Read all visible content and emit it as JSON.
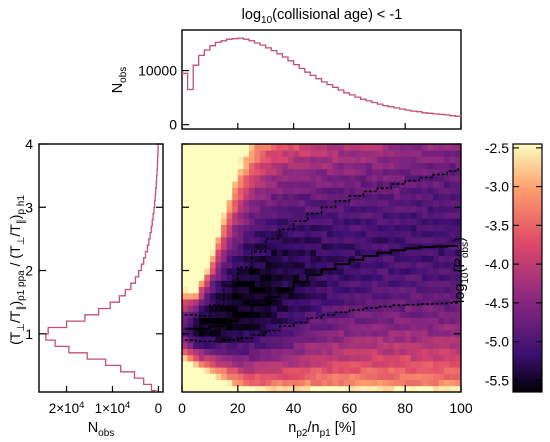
{
  "title": {
    "text": "log",
    "sub": "10",
    "rest": "(collisional age) < -1"
  },
  "colors": {
    "hist": "#c2507a",
    "frame": "#000000",
    "cmap": [
      "#000004",
      "#3b0f70",
      "#8c2981",
      "#de4968",
      "#fe9f6d",
      "#fcfdbf"
    ]
  },
  "chart_data": [
    {
      "type": "line",
      "id": "top-histogram",
      "ylabel": {
        "main": "N",
        "sub": "obs"
      },
      "xlim": [
        0,
        100
      ],
      "ylim": [
        -800,
        17500
      ],
      "yticks": [
        0,
        10000
      ],
      "ytick_labels": [
        "0",
        "10000"
      ],
      "x": [
        0,
        2,
        4,
        6,
        8,
        10,
        12,
        14,
        16,
        18,
        20,
        22,
        24,
        26,
        28,
        30,
        32,
        34,
        36,
        38,
        40,
        42,
        44,
        46,
        48,
        50,
        52,
        54,
        56,
        58,
        60,
        62,
        64,
        66,
        68,
        70,
        72,
        74,
        76,
        78,
        80,
        82,
        84,
        86,
        88,
        90,
        92,
        94,
        96,
        98,
        100
      ],
      "values": [
        9500,
        6500,
        11000,
        12800,
        13800,
        14600,
        15200,
        15500,
        15800,
        15900,
        16000,
        15800,
        15500,
        15100,
        14700,
        14200,
        13700,
        13100,
        12500,
        11800,
        11100,
        10400,
        9700,
        9100,
        8500,
        7900,
        7400,
        6900,
        6400,
        5900,
        5500,
        5100,
        4700,
        4400,
        4100,
        3800,
        3500,
        3300,
        3100,
        2900,
        2700,
        2500,
        2400,
        2200,
        2100,
        2000,
        1900,
        1800,
        1650,
        1550,
        1450
      ]
    },
    {
      "type": "line",
      "id": "left-histogram",
      "xlabel": {
        "main": "N",
        "sub": "obs"
      },
      "xticks": [
        20000,
        10000,
        0
      ],
      "xtick_labels": [
        {
          "m": "2×10",
          "e": "4"
        },
        {
          "m": "1×10",
          "e": "4"
        },
        {
          "m": "0",
          "e": ""
        }
      ],
      "xlim": [
        26000,
        -1000
      ],
      "ylim": [
        0.08,
        4.0
      ],
      "y": [
        0.1,
        0.2,
        0.3,
        0.4,
        0.5,
        0.6,
        0.7,
        0.8,
        0.9,
        1.0,
        1.1,
        1.2,
        1.3,
        1.4,
        1.5,
        1.6,
        1.7,
        1.8,
        1.9,
        2.0,
        2.1,
        2.2,
        2.3,
        2.4,
        2.5,
        2.6,
        2.7,
        2.8,
        2.9,
        3.0,
        3.1,
        3.2,
        3.3,
        3.4,
        3.5,
        3.6,
        3.7,
        3.8,
        3.9,
        4.0
      ],
      "values": [
        500,
        1500,
        3200,
        5200,
        8200,
        11500,
        15500,
        19500,
        22500,
        24500,
        24000,
        20000,
        16000,
        13000,
        10500,
        8500,
        7200,
        6000,
        5000,
        4300,
        3700,
        3200,
        2800,
        2400,
        2100,
        1800,
        1550,
        1350,
        1150,
        950,
        820,
        700,
        580,
        480,
        390,
        300,
        230,
        170,
        110,
        60
      ]
    },
    {
      "type": "heatmap",
      "id": "main-heatmap",
      "xlabel": {
        "a": "n",
        "as": "p2",
        "b": "/n",
        "bs": "p1",
        "c": " [%]"
      },
      "ylabel": "(T⊥/T∥)p1 ppa / (T⊥/T∥)p h1",
      "xlim": [
        0,
        100
      ],
      "ylim": [
        0.08,
        4.0
      ],
      "xticks": [
        0,
        20,
        40,
        60,
        80,
        100
      ],
      "yticks": [
        1,
        2,
        3,
        4
      ],
      "colorbar": {
        "label": "log10(Pobs)",
        "range": [
          -5.65,
          -2.45
        ],
        "ticks": [
          "-2.5",
          "-3.0",
          "-3.5",
          "-4.0",
          "-4.5",
          "-5.0",
          "-5.5"
        ],
        "tick_values": [
          -2.5,
          -3.0,
          -3.5,
          -4.0,
          -4.5,
          -5.0,
          -5.5
        ]
      },
      "median_line": {
        "x": [
          1,
          5,
          10,
          15,
          20,
          25,
          30,
          35,
          40,
          45,
          50,
          55,
          60,
          65,
          70,
          75,
          80,
          85,
          90,
          95,
          99
        ],
        "y": [
          1.08,
          1.08,
          1.12,
          1.2,
          1.32,
          1.45,
          1.58,
          1.7,
          1.82,
          1.93,
          2.02,
          2.1,
          2.17,
          2.23,
          2.28,
          2.32,
          2.35,
          2.37,
          2.38,
          2.39,
          2.39
        ]
      },
      "upper_quartile_line": {
        "x": [
          1,
          5,
          10,
          15,
          20,
          25,
          30,
          35,
          40,
          45,
          50,
          55,
          60,
          65,
          70,
          75,
          80,
          85,
          90,
          95,
          99
        ],
        "y": [
          1.3,
          1.28,
          1.45,
          1.75,
          2.05,
          2.3,
          2.5,
          2.65,
          2.78,
          2.9,
          3.0,
          3.1,
          3.18,
          3.25,
          3.3,
          3.37,
          3.42,
          3.47,
          3.52,
          3.57,
          3.62
        ]
      },
      "lower_quartile_line": {
        "x": [
          1,
          5,
          10,
          15,
          20,
          25,
          30,
          35,
          40,
          45,
          50,
          55,
          60,
          65,
          70,
          75,
          80,
          85,
          90,
          95,
          99
        ],
        "y": [
          0.9,
          0.88,
          0.88,
          0.9,
          0.93,
          0.98,
          1.05,
          1.12,
          1.18,
          1.25,
          1.3,
          1.34,
          1.38,
          1.41,
          1.43,
          1.45,
          1.46,
          1.47,
          1.48,
          1.49,
          1.49
        ]
      }
    }
  ]
}
